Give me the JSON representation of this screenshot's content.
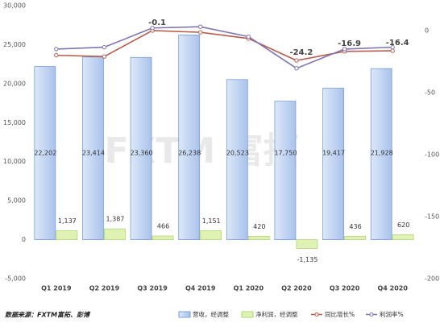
{
  "chart_data": {
    "type": "bar-line",
    "categories": [
      "Q1 2019",
      "Q2 2019",
      "Q3 2019",
      "Q4 2019",
      "Q1 2020",
      "Q2 2020",
      "Q3 2020",
      "Q4 2020"
    ],
    "series": [
      {
        "name": "营收，经调整",
        "type": "bar",
        "color": "#9fbbe8",
        "axis": "y",
        "values": [
          22202,
          23414,
          23360,
          26238,
          20523,
          17750,
          19417,
          21928
        ],
        "value_labels": [
          "22,202",
          "23,414",
          "23,360",
          "26,238",
          "20,523",
          "17,750",
          "19,417",
          "21,928"
        ]
      },
      {
        "name": "净利润，经调整",
        "type": "bar",
        "color": "#dff2b4",
        "axis": "y",
        "values": [
          1137,
          1387,
          466,
          1151,
          420,
          -1135,
          436,
          620
        ],
        "value_labels": [
          "1,137",
          "1,387",
          "466",
          "1,151",
          "420",
          "-1,135",
          "436",
          "620"
        ]
      },
      {
        "name": "同比增长%",
        "type": "line",
        "color": "#b85c4c",
        "axis": "y2",
        "values": [
          -20,
          -21,
          -0.1,
          -1.5,
          -6.5,
          -24.2,
          -16.9,
          -16.4
        ],
        "value_labels": [
          null,
          null,
          "-0.1",
          null,
          null,
          "-24.2",
          "-16.9",
          "-16.4"
        ]
      },
      {
        "name": "利润率%",
        "type": "line",
        "color": "#7f74b4",
        "axis": "y2",
        "values": [
          -15,
          -13.5,
          2,
          3,
          -5,
          -30.5,
          -15,
          -13.5
        ]
      }
    ],
    "ylim": [
      -5000,
      30000
    ],
    "yticks": [
      {
        "value": -5000,
        "label": "-5,000"
      },
      0,
      {
        "value": 5000,
        "label": "5,000"
      },
      {
        "value": 10000,
        "label": "10,000"
      },
      {
        "value": 15000,
        "label": "15,000"
      },
      {
        "value": 20000,
        "label": "20,000"
      },
      {
        "value": 25000,
        "label": "25,000"
      },
      {
        "value": 30000,
        "label": "30,000"
      }
    ],
    "y2lim": [
      -200,
      20
    ],
    "y2ticks": [
      0,
      -50,
      -100,
      -150,
      -200
    ],
    "grid": false,
    "legend": "bottom",
    "watermark": "FXTM 富拓",
    "source": "数据来源：FXTM富拓、彭博"
  }
}
